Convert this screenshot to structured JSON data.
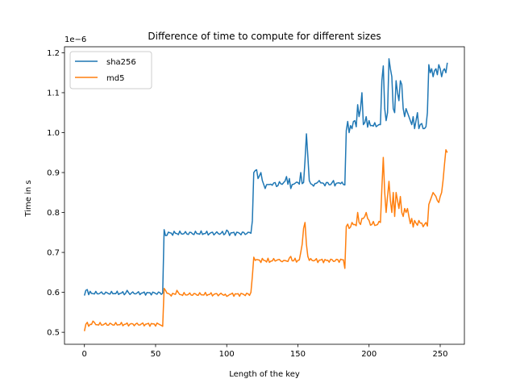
{
  "chart_data": {
    "type": "line",
    "title": "Difference of time to compute for different sizes",
    "xlabel": "Length of the key",
    "ylabel": "Time in s",
    "y_scale_label": "1e−6",
    "xlim": [
      -14,
      267
    ],
    "ylim": [
      0.47,
      1.215
    ],
    "x_ticks": [
      0,
      50,
      100,
      150,
      200,
      250
    ],
    "y_ticks": [
      0.5,
      0.6,
      0.7,
      0.8,
      0.9,
      1.0,
      1.1,
      1.2
    ],
    "y_tick_labels": [
      "0.5",
      "0.6",
      "0.7",
      "0.8",
      "0.9",
      "1.0",
      "1.1",
      "1.2"
    ],
    "grid": false,
    "legend_position": "top-left",
    "colors": {
      "sha256": "#1f77b4",
      "md5": "#ff7f0e"
    },
    "series": [
      {
        "name": "sha256",
        "segments": [
          {
            "x_start": 0,
            "x_end": 55,
            "base": 0.598,
            "amp": 0.005
          },
          {
            "x_start": 56,
            "x_end": 118,
            "base": 0.748,
            "amp": 0.006
          },
          {
            "x_start": 119,
            "x_end": 183,
            "base": 0.872,
            "amp": 0.007
          },
          {
            "x_start": 184,
            "x_end": 255,
            "base": 1.02,
            "amp": 0.01
          }
        ],
        "points": [
          [
            0,
            0.592
          ],
          [
            1,
            0.605
          ],
          [
            2,
            0.607
          ],
          [
            30,
            0.605
          ],
          [
            55,
            0.598
          ],
          [
            56,
            0.757
          ],
          [
            57,
            0.742
          ],
          [
            100,
            0.756
          ],
          [
            117,
            0.748
          ],
          [
            118,
            0.779
          ],
          [
            119,
            0.9
          ],
          [
            120,
            0.905
          ],
          [
            121,
            0.907
          ],
          [
            122,
            0.885
          ],
          [
            123,
            0.892
          ],
          [
            124,
            0.9
          ],
          [
            125,
            0.88
          ],
          [
            126,
            0.87
          ],
          [
            127,
            0.86
          ],
          [
            130,
            0.87
          ],
          [
            135,
            0.865
          ],
          [
            140,
            0.875
          ],
          [
            142,
            0.89
          ],
          [
            144,
            0.885
          ],
          [
            145,
            0.86
          ],
          [
            146,
            0.87
          ],
          [
            150,
            0.875
          ],
          [
            152,
            0.9
          ],
          [
            154,
            0.875
          ],
          [
            155,
            0.93
          ],
          [
            156,
            0.997
          ],
          [
            157,
            0.94
          ],
          [
            158,
            0.88
          ],
          [
            160,
            0.87
          ],
          [
            165,
            0.88
          ],
          [
            170,
            0.875
          ],
          [
            175,
            0.88
          ],
          [
            180,
            0.872
          ],
          [
            182,
            0.87
          ],
          [
            183,
            0.869
          ],
          [
            184,
            1.005
          ],
          [
            186,
            1.0
          ],
          [
            188,
            1.01
          ],
          [
            190,
            1.03
          ],
          [
            192,
            1.07
          ],
          [
            193,
            1.04
          ],
          [
            194,
            1.06
          ],
          [
            195,
            1.1
          ],
          [
            196,
            1.02
          ],
          [
            197,
            1.025
          ],
          [
            198,
            1.04
          ],
          [
            200,
            1.03
          ],
          [
            204,
            1.025
          ],
          [
            208,
            1.02
          ],
          [
            209,
            1.13
          ],
          [
            210,
            1.167
          ],
          [
            211,
            1.06
          ],
          [
            212,
            1.03
          ],
          [
            213,
            1.05
          ],
          [
            214,
            1.185
          ],
          [
            215,
            1.16
          ],
          [
            216,
            1.14
          ],
          [
            217,
            1.06
          ],
          [
            218,
            1.05
          ],
          [
            219,
            1.13
          ],
          [
            220,
            1.1
          ],
          [
            221,
            1.08
          ],
          [
            222,
            1.13
          ],
          [
            223,
            1.12
          ],
          [
            224,
            1.06
          ],
          [
            225,
            1.04
          ],
          [
            226,
            1.06
          ],
          [
            227,
            1.05
          ],
          [
            228,
            1.04
          ],
          [
            229,
            1.03
          ],
          [
            230,
            1.02
          ],
          [
            231,
            1.04
          ],
          [
            232,
            1.01
          ],
          [
            233,
            1.03
          ],
          [
            234,
            1.05
          ],
          [
            235,
            1.01
          ],
          [
            238,
            1.01
          ],
          [
            240,
            1.015
          ],
          [
            241,
            1.05
          ],
          [
            242,
            1.17
          ],
          [
            243,
            1.15
          ],
          [
            244,
            1.16
          ],
          [
            245,
            1.14
          ],
          [
            246,
            1.155
          ],
          [
            247,
            1.16
          ],
          [
            248,
            1.145
          ],
          [
            249,
            1.17
          ],
          [
            250,
            1.16
          ],
          [
            251,
            1.14
          ],
          [
            252,
            1.155
          ],
          [
            253,
            1.16
          ],
          [
            254,
            1.15
          ],
          [
            255,
            1.175
          ]
        ]
      },
      {
        "name": "md5",
        "segments": [
          {
            "x_start": 0,
            "x_end": 55,
            "base": 0.52,
            "amp": 0.005
          },
          {
            "x_start": 56,
            "x_end": 118,
            "base": 0.595,
            "amp": 0.005
          },
          {
            "x_start": 119,
            "x_end": 183,
            "base": 0.68,
            "amp": 0.006
          },
          {
            "x_start": 184,
            "x_end": 255,
            "base": 0.77,
            "amp": 0.008
          }
        ],
        "points": [
          [
            0,
            0.503
          ],
          [
            1,
            0.52
          ],
          [
            2,
            0.525
          ],
          [
            3,
            0.515
          ],
          [
            4,
            0.52
          ],
          [
            6,
            0.528
          ],
          [
            55,
            0.515
          ],
          [
            56,
            0.61
          ],
          [
            57,
            0.605
          ],
          [
            58,
            0.598
          ],
          [
            60,
            0.595
          ],
          [
            65,
            0.605
          ],
          [
            100,
            0.59
          ],
          [
            117,
            0.6
          ],
          [
            118,
            0.64
          ],
          [
            119,
            0.688
          ],
          [
            120,
            0.68
          ],
          [
            125,
            0.685
          ],
          [
            130,
            0.675
          ],
          [
            135,
            0.68
          ],
          [
            140,
            0.68
          ],
          [
            145,
            0.69
          ],
          [
            150,
            0.68
          ],
          [
            152,
            0.7
          ],
          [
            153,
            0.72
          ],
          [
            154,
            0.76
          ],
          [
            155,
            0.775
          ],
          [
            156,
            0.72
          ],
          [
            157,
            0.69
          ],
          [
            160,
            0.68
          ],
          [
            170,
            0.68
          ],
          [
            180,
            0.683
          ],
          [
            183,
            0.66
          ],
          [
            184,
            0.765
          ],
          [
            186,
            0.76
          ],
          [
            188,
            0.775
          ],
          [
            190,
            0.77
          ],
          [
            192,
            0.8
          ],
          [
            193,
            0.775
          ],
          [
            194,
            0.77
          ],
          [
            195,
            0.785
          ],
          [
            196,
            0.785
          ],
          [
            197,
            0.79
          ],
          [
            198,
            0.8
          ],
          [
            199,
            0.785
          ],
          [
            200,
            0.78
          ],
          [
            202,
            0.77
          ],
          [
            206,
            0.77
          ],
          [
            208,
            0.775
          ],
          [
            209,
            0.86
          ],
          [
            210,
            0.938
          ],
          [
            211,
            0.85
          ],
          [
            212,
            0.8
          ],
          [
            213,
            0.84
          ],
          [
            214,
            0.878
          ],
          [
            215,
            0.83
          ],
          [
            216,
            0.8
          ],
          [
            217,
            0.85
          ],
          [
            218,
            0.79
          ],
          [
            219,
            0.85
          ],
          [
            220,
            0.83
          ],
          [
            221,
            0.81
          ],
          [
            222,
            0.84
          ],
          [
            223,
            0.8
          ],
          [
            224,
            0.79
          ],
          [
            225,
            0.81
          ],
          [
            226,
            0.8
          ],
          [
            227,
            0.81
          ],
          [
            228,
            0.79
          ],
          [
            230,
            0.785
          ],
          [
            232,
            0.78
          ],
          [
            235,
            0.78
          ],
          [
            240,
            0.775
          ],
          [
            241,
            0.766
          ],
          [
            242,
            0.82
          ],
          [
            243,
            0.83
          ],
          [
            244,
            0.84
          ],
          [
            245,
            0.85
          ],
          [
            246,
            0.845
          ],
          [
            247,
            0.84
          ],
          [
            248,
            0.83
          ],
          [
            249,
            0.825
          ],
          [
            250,
            0.84
          ],
          [
            251,
            0.85
          ],
          [
            252,
            0.88
          ],
          [
            253,
            0.92
          ],
          [
            254,
            0.957
          ],
          [
            255,
            0.95
          ]
        ]
      }
    ]
  }
}
